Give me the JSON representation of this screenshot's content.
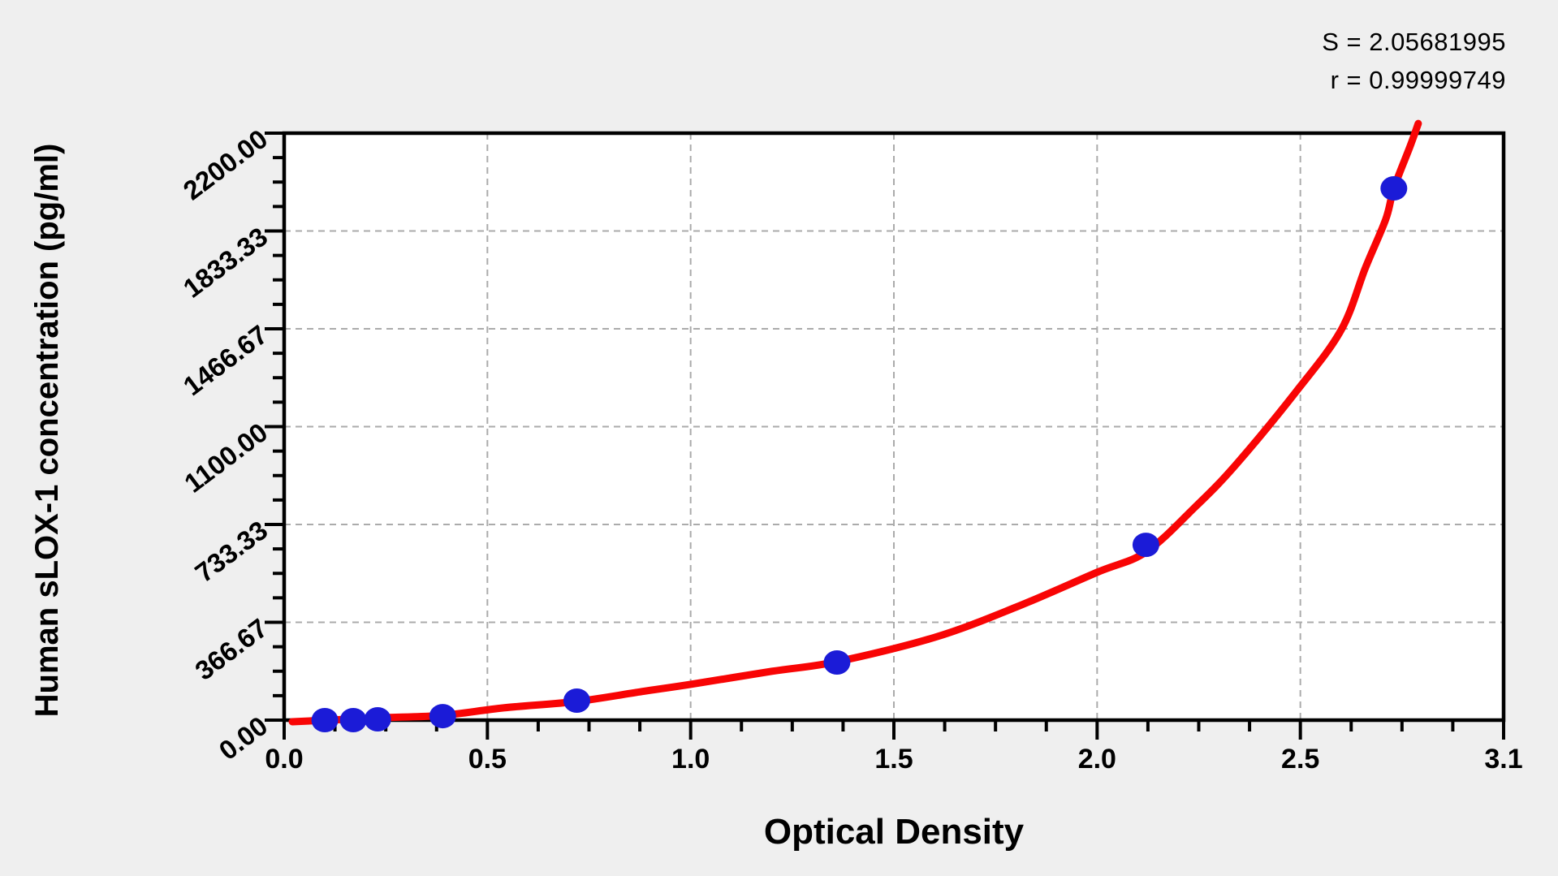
{
  "stats": {
    "s": "S = 2.05681995",
    "r": "r = 0.99999749"
  },
  "chart_data": {
    "type": "scatter",
    "title": "",
    "xlabel": "Optical Density",
    "ylabel": "Human sLOX-1 concentration (pg/ml)",
    "x_tick_labels": [
      "0.0",
      "0.5",
      "1.0",
      "1.5",
      "2.0",
      "2.5",
      "3.1"
    ],
    "y_tick_labels": [
      "0.00",
      "366.67",
      "733.33",
      "1100.00",
      "1466.67",
      "1833.33",
      "2200.00"
    ],
    "x_scale_span": 3.0,
    "ylim": [
      0,
      2200
    ],
    "minor_divisions_per_major": 4,
    "grid": {
      "style": "dashed",
      "on_major_ticks": true
    },
    "legend": "none",
    "series": [
      {
        "name": "standards",
        "marker": "circle",
        "points_od_conc": [
          [
            0.1,
            0
          ],
          [
            0.17,
            0
          ],
          [
            0.23,
            3
          ],
          [
            0.39,
            15
          ],
          [
            0.72,
            73
          ],
          [
            1.36,
            216
          ],
          [
            2.12,
            657
          ],
          [
            2.73,
            1993
          ]
        ]
      },
      {
        "name": "fitted-curve",
        "marker": "none",
        "points_od_conc": [
          [
            0.02,
            -6
          ],
          [
            0.11,
            0
          ],
          [
            0.24,
            9
          ],
          [
            0.39,
            18
          ],
          [
            0.54,
            46
          ],
          [
            0.72,
            70
          ],
          [
            0.88,
            107
          ],
          [
            1.0,
            134
          ],
          [
            1.2,
            183
          ],
          [
            1.36,
            219
          ],
          [
            1.6,
            310
          ],
          [
            1.8,
            423
          ],
          [
            2.0,
            554
          ],
          [
            2.12,
            630
          ],
          [
            2.24,
            797
          ],
          [
            2.34,
            955
          ],
          [
            2.49,
            1232
          ],
          [
            2.6,
            1461
          ],
          [
            2.66,
            1695
          ],
          [
            2.71,
            1877
          ],
          [
            2.73,
            1993
          ],
          [
            2.77,
            2151
          ],
          [
            2.79,
            2236
          ]
        ]
      }
    ],
    "colors": {
      "curve": "#F80505",
      "marker": "#1B1BD7",
      "grid": "#ABABAB",
      "axis": "#000000",
      "plot_bg": "#FFFFFF",
      "page_bg": "#EFEFEF",
      "text": "#000000"
    }
  }
}
